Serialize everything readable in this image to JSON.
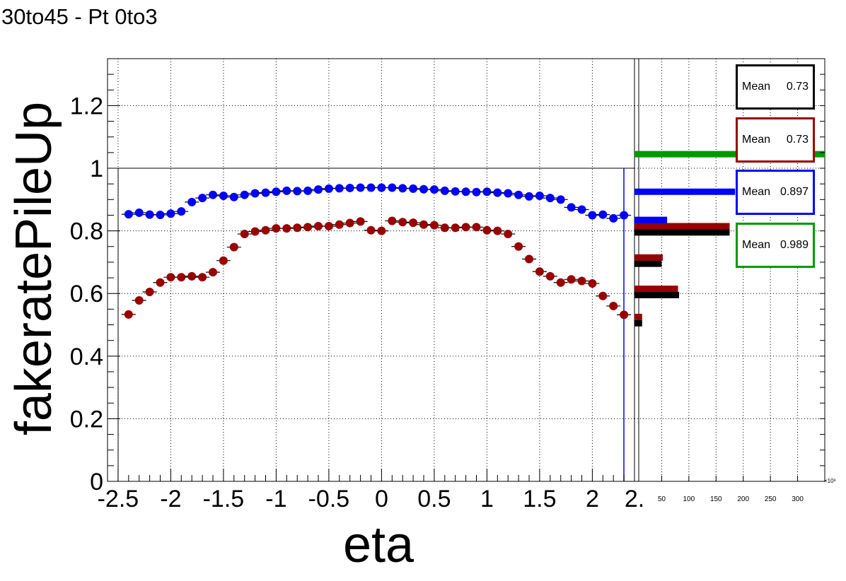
{
  "title": "30to45 - Pt 0to3",
  "chart_data": [
    {
      "type": "scatter",
      "xlabel": "eta",
      "ylabel": "fakeratePileUp",
      "xlim": [
        -2.6,
        2.4
      ],
      "ylim": [
        0,
        1.35
      ],
      "x_ticks": [
        "-2.5",
        "-2",
        "-1.5",
        "-1",
        "-0.5",
        "0",
        "0.5",
        "1",
        "1.5",
        "2",
        "2."
      ],
      "x_tick_values": [
        -2.5,
        -2,
        -1.5,
        -1,
        -0.5,
        0,
        0.5,
        1,
        1.5,
        2,
        2.4
      ],
      "y_ticks": [
        "0",
        "0.2",
        "0.4",
        "0.6",
        "0.8",
        "1",
        "1.2"
      ],
      "y_tick_values": [
        0,
        0.2,
        0.4,
        0.6,
        0.8,
        1.0,
        1.2
      ],
      "grid": true,
      "series": [
        {
          "color": "#0000ff",
          "x": [
            -2.4,
            -2.3,
            -2.2,
            -2.1,
            -2.0,
            -1.9,
            -1.8,
            -1.7,
            -1.6,
            -1.5,
            -1.4,
            -1.3,
            -1.2,
            -1.1,
            -1.0,
            -0.9,
            -0.8,
            -0.7,
            -0.6,
            -0.5,
            -0.4,
            -0.3,
            -0.2,
            -0.1,
            0.0,
            0.1,
            0.2,
            0.3,
            0.4,
            0.5,
            0.6,
            0.7,
            0.8,
            0.9,
            1.0,
            1.1,
            1.2,
            1.3,
            1.4,
            1.5,
            1.6,
            1.7,
            1.8,
            1.9,
            2.0,
            2.1,
            2.2,
            2.3
          ],
          "y": [
            0.853,
            0.858,
            0.852,
            0.851,
            0.855,
            0.862,
            0.892,
            0.905,
            0.915,
            0.912,
            0.908,
            0.915,
            0.92,
            0.922,
            0.925,
            0.928,
            0.927,
            0.928,
            0.932,
            0.935,
            0.936,
            0.937,
            0.938,
            0.938,
            0.938,
            0.938,
            0.936,
            0.935,
            0.933,
            0.932,
            0.928,
            0.926,
            0.925,
            0.924,
            0.925,
            0.922,
            0.92,
            0.915,
            0.91,
            0.912,
            0.905,
            0.9,
            0.875,
            0.868,
            0.85,
            0.852,
            0.84,
            0.85
          ]
        },
        {
          "color": "#990000",
          "x": [
            -2.4,
            -2.3,
            -2.2,
            -2.1,
            -2.0,
            -1.9,
            -1.8,
            -1.7,
            -1.6,
            -1.5,
            -1.4,
            -1.3,
            -1.2,
            -1.1,
            -1.0,
            -0.9,
            -0.8,
            -0.7,
            -0.6,
            -0.5,
            -0.4,
            -0.3,
            -0.2,
            -0.1,
            0.0,
            0.1,
            0.2,
            0.3,
            0.4,
            0.5,
            0.6,
            0.7,
            0.8,
            0.9,
            1.0,
            1.1,
            1.2,
            1.3,
            1.4,
            1.5,
            1.6,
            1.7,
            1.8,
            1.9,
            2.0,
            2.1,
            2.2,
            2.3
          ],
          "y": [
            0.533,
            0.578,
            0.605,
            0.635,
            0.652,
            0.652,
            0.655,
            0.652,
            0.668,
            0.705,
            0.748,
            0.79,
            0.798,
            0.802,
            0.808,
            0.808,
            0.81,
            0.812,
            0.815,
            0.815,
            0.82,
            0.825,
            0.83,
            0.802,
            0.8,
            0.832,
            0.828,
            0.826,
            0.82,
            0.818,
            0.81,
            0.81,
            0.812,
            0.812,
            0.802,
            0.8,
            0.79,
            0.75,
            0.71,
            0.67,
            0.655,
            0.635,
            0.645,
            0.64,
            0.632,
            0.592,
            0.56,
            0.532
          ]
        }
      ]
    },
    {
      "type": "bar",
      "orientation": "horizontal",
      "xlim": [
        0,
        350
      ],
      "x_ticks": [
        "50",
        "100",
        "150",
        "200",
        "250",
        "300"
      ],
      "x_tick_values": [
        50,
        100,
        150,
        200,
        250,
        300
      ],
      "x_exponent_label": "×10³",
      "ylim": [
        0,
        1.35
      ],
      "grid": true,
      "series": [
        {
          "color": "#000000",
          "bars": [
            {
              "y": 0.505,
              "value": 14
            },
            {
              "y": 0.595,
              "value": 82
            },
            {
              "y": 0.695,
              "value": 50
            },
            {
              "y": 0.795,
              "value": 175
            }
          ]
        },
        {
          "color": "#990000",
          "bars": [
            {
              "y": 0.525,
              "value": 14
            },
            {
              "y": 0.615,
              "value": 80
            },
            {
              "y": 0.715,
              "value": 52
            },
            {
              "y": 0.815,
              "value": 175
            }
          ]
        },
        {
          "color": "#0000ff",
          "bars": [
            {
              "y": 0.835,
              "value": 60
            },
            {
              "y": 0.925,
              "value": 185
            }
          ]
        },
        {
          "color": "#009900",
          "bars": [
            {
              "y": 1.045,
              "value": 350
            }
          ]
        }
      ],
      "stat_boxes": [
        {
          "label": "Mean",
          "value": "0.73",
          "color": "#000000"
        },
        {
          "label": "Mean",
          "value": "0.73",
          "color": "#990000"
        },
        {
          "label": "Mean",
          "value": "0.897",
          "color": "#0000ff"
        },
        {
          "label": "Mean",
          "value": "0.989",
          "color": "#009900"
        }
      ]
    }
  ]
}
